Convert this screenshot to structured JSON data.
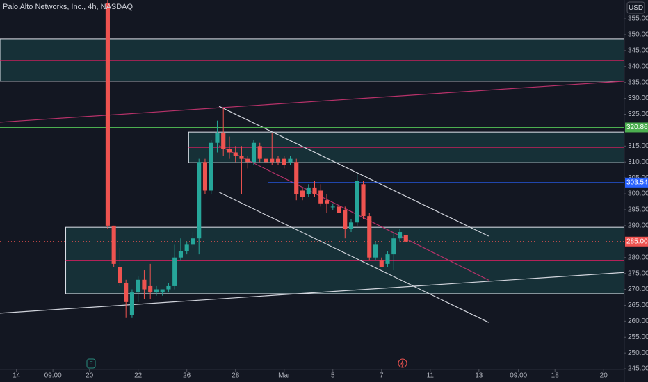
{
  "chart_data": {
    "type": "candlestick",
    "title": "Palo Alto Networks, Inc., 4h, NASDAQ",
    "currency": "USD",
    "open": [
      360,
      290,
      277,
      272,
      262,
      269,
      273,
      271,
      269,
      269,
      270,
      271,
      280,
      282,
      284,
      286,
      310,
      301,
      316,
      319,
      314,
      313,
      312,
      311,
      310,
      315,
      311,
      311,
      311,
      311,
      310,
      310,
      301,
      300,
      302,
      301,
      298,
      296,
      296,
      295,
      289,
      291,
      303,
      293,
      280,
      279,
      278,
      281,
      286,
      287
    ],
    "high": [
      361,
      290,
      283,
      273,
      270,
      274,
      276,
      278,
      271,
      270,
      272,
      284,
      286,
      285,
      288,
      311,
      311,
      317,
      323,
      327,
      318,
      315,
      315,
      312,
      317,
      316,
      312,
      319,
      312,
      312,
      312,
      311,
      302,
      303,
      304,
      303,
      300,
      297,
      297,
      296,
      292,
      306,
      304,
      294,
      285,
      280,
      282,
      288,
      289,
      287
    ],
    "low": [
      289,
      277,
      271,
      261,
      261,
      266,
      267,
      267,
      268,
      268,
      269,
      270,
      279,
      281,
      283,
      281,
      300,
      300,
      313,
      312,
      311,
      310,
      300,
      308,
      309,
      310,
      309,
      309,
      309,
      308,
      309,
      298,
      298,
      299,
      299,
      296,
      294,
      295,
      293,
      286,
      288,
      290,
      292,
      279,
      279,
      277,
      277,
      276,
      285,
      285
    ],
    "close": [
      290,
      278,
      272,
      266,
      269,
      273,
      270,
      269,
      270,
      270,
      271,
      280,
      282,
      284,
      286,
      310,
      301,
      316,
      319,
      314,
      313,
      312,
      311,
      310,
      316,
      311,
      310,
      310,
      310,
      309,
      311,
      300,
      299,
      302,
      300,
      297,
      297,
      296,
      294,
      289,
      291,
      304,
      293,
      280,
      284,
      277,
      281,
      286,
      288,
      285
    ],
    "up_color": "#26a69a",
    "down_color": "#ef5350",
    "ylim": [
      244.8,
      360.9
    ],
    "xlim": [
      -17.7,
      84.9
    ],
    "yticks": [
      {
        "value": 245,
        "label": "245.00"
      },
      {
        "value": 250,
        "label": "250.00"
      },
      {
        "value": 255,
        "label": "255.00"
      },
      {
        "value": 260,
        "label": "260.00"
      },
      {
        "value": 265,
        "label": "265.00"
      },
      {
        "value": 270,
        "label": "270.00"
      },
      {
        "value": 275,
        "label": "275.00"
      },
      {
        "value": 280,
        "label": "280.00"
      },
      {
        "value": 290,
        "label": "290.00"
      },
      {
        "value": 295,
        "label": "295.00"
      },
      {
        "value": 300,
        "label": "300.00"
      },
      {
        "value": 305,
        "label": "305.00"
      },
      {
        "value": 310,
        "label": "310.00"
      },
      {
        "value": 315,
        "label": "315.00"
      },
      {
        "value": 325,
        "label": "325.00"
      },
      {
        "value": 330,
        "label": "330.00"
      },
      {
        "value": 335,
        "label": "335.00"
      },
      {
        "value": 340,
        "label": "340.00"
      },
      {
        "value": 345,
        "label": "345.00"
      },
      {
        "value": 350,
        "label": "350.00"
      },
      {
        "value": 355,
        "label": "355.00"
      }
    ],
    "xticks": [
      {
        "value": -15,
        "label": "14"
      },
      {
        "value": -9,
        "label": "09:00"
      },
      {
        "value": -3,
        "label": "20"
      },
      {
        "value": 5,
        "label": "22"
      },
      {
        "value": 13,
        "label": "26"
      },
      {
        "value": 21,
        "label": "28"
      },
      {
        "value": 29,
        "label": "Mar"
      },
      {
        "value": 37,
        "label": "5"
      },
      {
        "value": 45,
        "label": "7"
      },
      {
        "value": 53,
        "label": "11"
      },
      {
        "value": 61,
        "label": "13"
      },
      {
        "value": 67.5,
        "label": "09:00"
      },
      {
        "value": 73.5,
        "label": "18"
      },
      {
        "value": 81.5,
        "label": "20"
      }
    ],
    "zones": [
      {
        "top": 348.7,
        "bottom": 335.4,
        "mid": 341.9
      },
      {
        "x0": 13.3,
        "top": 319.4,
        "bottom": 309.8,
        "mid": 314.6
      },
      {
        "x0": -6.9,
        "top": 289.5,
        "bottom": 268.6,
        "mid": 279
      }
    ],
    "trendlines": [
      {
        "x": [
          -17.7,
          84.9
        ],
        "y": [
          322.5,
          335.4
        ],
        "color": "#b8326a"
      },
      {
        "x": [
          18.3,
          62.6
        ],
        "y": [
          327.5,
          286.7
        ],
        "color": "#d1d4dc"
      },
      {
        "x": [
          18.3,
          62.6
        ],
        "y": [
          300.5,
          259.6
        ],
        "color": "#d1d4dc"
      },
      {
        "x": [
          18.3,
          62.6
        ],
        "y": [
          315.1,
          272.9
        ],
        "color": "#b8326a"
      },
      {
        "x": [
          -17.7,
          84.9
        ],
        "y": [
          262.5,
          275.3
        ],
        "color": "#d1d4dc"
      }
    ],
    "price_lines": [
      {
        "price": 320.86,
        "color": "#4caf50"
      },
      {
        "price": 303.54,
        "color": "#2962ff",
        "x0": 26.3
      }
    ],
    "last_price": {
      "value": 285,
      "label": "285.00"
    }
  }
}
